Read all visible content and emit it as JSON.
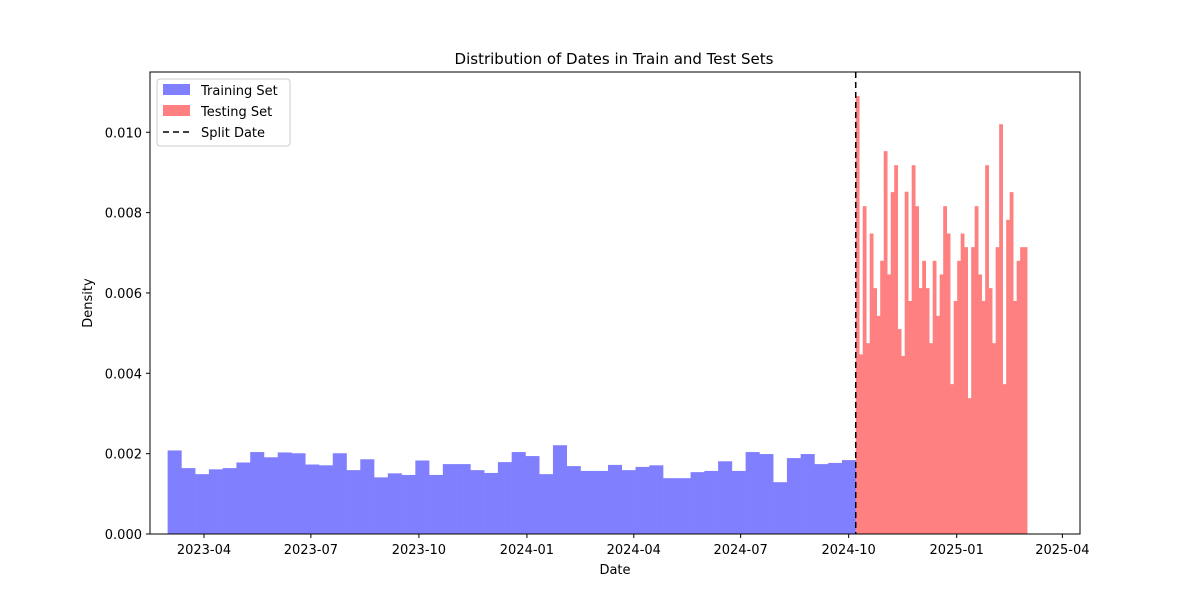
{
  "chart_data": {
    "type": "histogram",
    "title": "Distribution of Dates in Train and Test Sets",
    "xlabel": "Date",
    "ylabel": "Density",
    "xlim": [
      "2023-02-14",
      "2025-04-16"
    ],
    "ylim": [
      0,
      0.0115
    ],
    "x_ticks": [
      {
        "date": "2023-04-01",
        "label": "2023-04"
      },
      {
        "date": "2023-07-01",
        "label": "2023-07"
      },
      {
        "date": "2023-10-01",
        "label": "2023-10"
      },
      {
        "date": "2024-01-01",
        "label": "2024-01"
      },
      {
        "date": "2024-04-01",
        "label": "2024-04"
      },
      {
        "date": "2024-07-01",
        "label": "2024-07"
      },
      {
        "date": "2024-10-01",
        "label": "2024-10"
      },
      {
        "date": "2025-01-01",
        "label": "2025-01"
      },
      {
        "date": "2025-04-01",
        "label": "2025-04"
      }
    ],
    "y_ticks": [
      {
        "value": 0.0,
        "label": "0.000"
      },
      {
        "value": 0.002,
        "label": "0.002"
      },
      {
        "value": 0.004,
        "label": "0.004"
      },
      {
        "value": 0.006,
        "label": "0.006"
      },
      {
        "value": 0.008,
        "label": "0.008"
      },
      {
        "value": 0.01,
        "label": "0.010"
      }
    ],
    "grid": false,
    "legend": "upper-left",
    "series": [
      {
        "name": "Training Set",
        "color": "#8080ff",
        "bin_start": "2023-03-01",
        "bin_end": "2024-10-07",
        "values": [
          0.00208,
          0.00164,
          0.00149,
          0.00161,
          0.00164,
          0.00178,
          0.00204,
          0.00191,
          0.00203,
          0.00201,
          0.00173,
          0.00171,
          0.00201,
          0.00159,
          0.00186,
          0.00141,
          0.00151,
          0.00147,
          0.00183,
          0.00147,
          0.00174,
          0.00174,
          0.00159,
          0.00152,
          0.00179,
          0.00204,
          0.00194,
          0.00149,
          0.00221,
          0.00169,
          0.00157,
          0.00157,
          0.00172,
          0.00159,
          0.00167,
          0.00171,
          0.00139,
          0.00139,
          0.00154,
          0.00157,
          0.00181,
          0.00157,
          0.00204,
          0.00199,
          0.00129,
          0.00189,
          0.00199,
          0.00174,
          0.00177,
          0.00184
        ]
      },
      {
        "name": "Testing Set",
        "color": "#ff8080",
        "bin_start": "2024-10-07",
        "bin_end": "2025-03-02",
        "values": [
          0.0109,
          0.00447,
          0.00816,
          0.00475,
          0.00748,
          0.00612,
          0.00543,
          0.0068,
          0.00953,
          0.00646,
          0.00851,
          0.00918,
          0.0051,
          0.00443,
          0.00852,
          0.0058,
          0.00918,
          0.00816,
          0.00612,
          0.0068,
          0.00612,
          0.00475,
          0.0068,
          0.00543,
          0.00646,
          0.00816,
          0.00748,
          0.00373,
          0.0058,
          0.0068,
          0.00748,
          0.00714,
          0.00338,
          0.00714,
          0.00816,
          0.00646,
          0.0058,
          0.00918,
          0.00612,
          0.00475,
          0.00714,
          0.0102,
          0.00373,
          0.00782,
          0.00851,
          0.0058,
          0.0068,
          0.00714,
          0.00714
        ]
      },
      {
        "name": "Split Date",
        "type": "vline",
        "color": "#000000",
        "x": "2024-10-07"
      }
    ]
  }
}
